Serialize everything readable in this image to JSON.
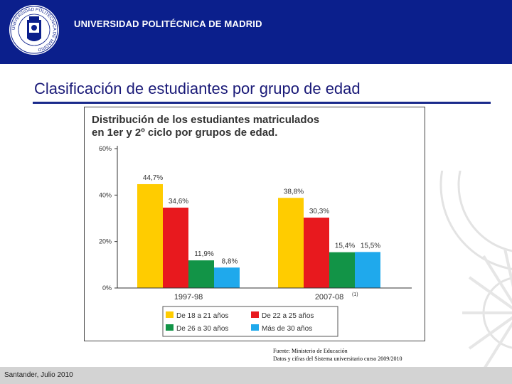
{
  "header": {
    "university": "UNIVERSIDAD POLITÉCNICA DE MADRID",
    "crest_text": "UNIVERSIDAD POLITÉCNICA DE MADRID"
  },
  "slide": {
    "title": "Clasificación de estudiantes por grupo de edad"
  },
  "chart_data": {
    "type": "bar",
    "title_line1": "Distribución de los estudiantes matriculados",
    "title_line2": "en 1er y 2º ciclo por grupos de edad.",
    "categories": [
      "1997-98",
      "2007-08"
    ],
    "category_notes": [
      "",
      "(1)"
    ],
    "series": [
      {
        "name": "De 18 a 21 años",
        "color": "#ffcc00",
        "values": [
          44.7,
          38.8
        ],
        "labels": [
          "44,7%",
          "38,8%"
        ]
      },
      {
        "name": "De 22 a 25 años",
        "color": "#e8191e",
        "values": [
          34.6,
          30.3
        ],
        "labels": [
          "34,6%",
          "30,3%"
        ]
      },
      {
        "name": "De 26 a 30 años",
        "color": "#129447",
        "values": [
          11.9,
          15.4
        ],
        "labels": [
          "11,9%",
          "15,4%"
        ]
      },
      {
        "name": "Más de 30 años",
        "color": "#1fa9ec",
        "values": [
          8.8,
          15.5
        ],
        "labels": [
          "8,8%",
          "15,5%"
        ]
      }
    ],
    "y_ticks": [
      0,
      20,
      40,
      60
    ],
    "y_tick_labels": [
      "0%",
      "20%",
      "40%",
      "60%"
    ],
    "ylim": [
      0,
      60
    ],
    "legend_position": "bottom"
  },
  "source": {
    "line1": "Fuente: Ministerio de Educación",
    "line2": "Datos y cifras del Sistema universitario curso 2009/2010"
  },
  "footer": {
    "text": "Santander, Julio 2010"
  }
}
